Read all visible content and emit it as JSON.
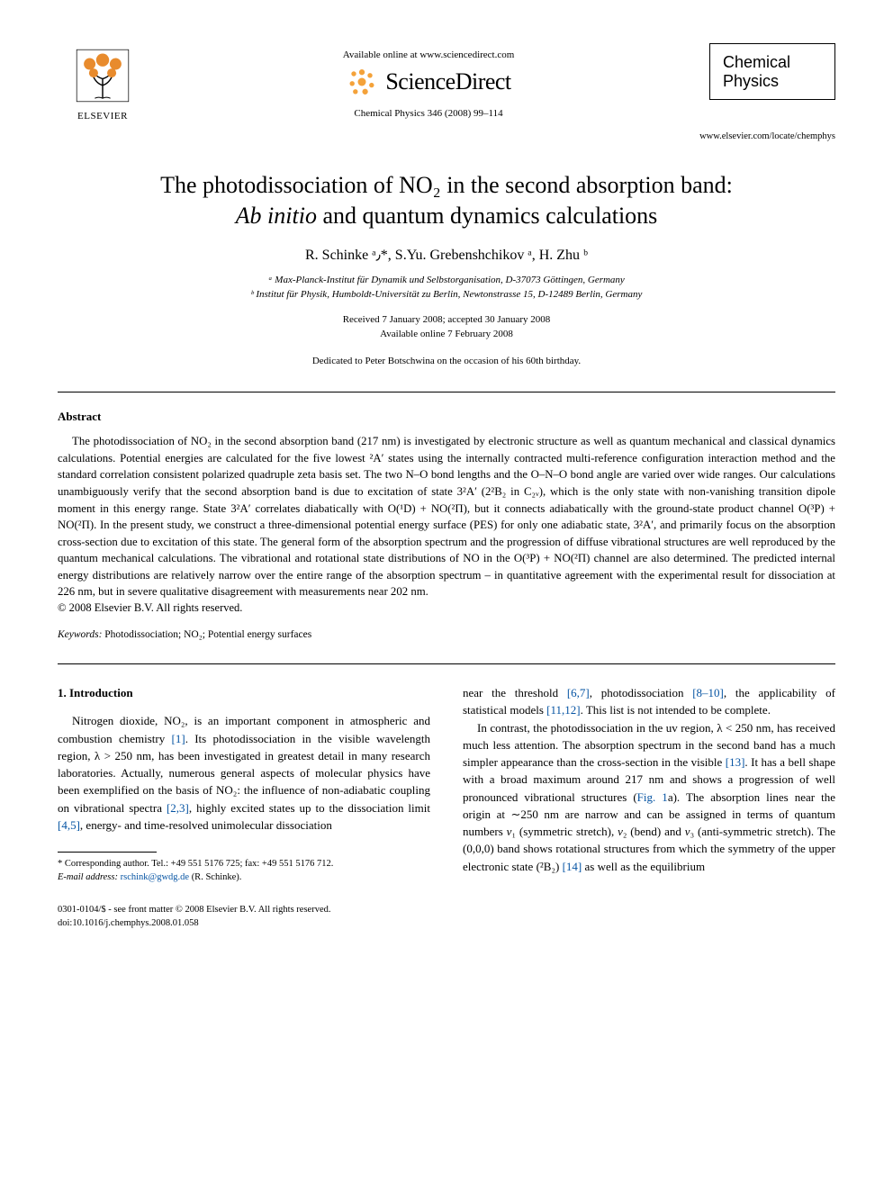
{
  "header": {
    "elsevier_label": "ELSEVIER",
    "available_online": "Available online at www.sciencedirect.com",
    "sciencedirect": "ScienceDirect",
    "journal_ref": "Chemical Physics 346 (2008) 99–114",
    "journal_box_line1": "Chemical",
    "journal_box_line2": "Physics",
    "journal_url": "www.elsevier.com/locate/chemphys",
    "elsevier_tree_color": "#e88b2d",
    "sd_dot_color": "#f4a23a"
  },
  "title": {
    "line1": "The photodissociation of NO₂ in the second absorption band:",
    "line2_html": "<i>Ab initio</i> and quantum dynamics calculations"
  },
  "authors": "R. Schinke ᵃ٫*, S.Yu. Grebenshchikov ᵃ, H. Zhu ᵇ",
  "affiliations": {
    "a": "ᵃ Max-Planck-Institut für Dynamik und Selbstorganisation, D-37073 Göttingen, Germany",
    "b": "ᵇ Institut für Physik, Humboldt-Universität zu Berlin, Newtonstrasse 15, D-12489 Berlin, Germany"
  },
  "dates": {
    "received": "Received 7 January 2008; accepted 30 January 2008",
    "online": "Available online 7 February 2008"
  },
  "dedication": "Dedicated to Peter Botschwina on the occasion of his 60th birthday.",
  "abstract": {
    "heading": "Abstract",
    "body": "The photodissociation of NO₂ in the second absorption band (217 nm) is investigated by electronic structure as well as quantum mechanical and classical dynamics calculations. Potential energies are calculated for the five lowest ²A′ states using the internally contracted multi-reference configuration interaction method and the standard correlation consistent polarized quadruple zeta basis set. The two N–O bond lengths and the O–N–O bond angle are varied over wide ranges. Our calculations unambiguously verify that the second absorption band is due to excitation of state 3²A′ (2²B₂ in C₂ᵥ), which is the only state with non-vanishing transition dipole moment in this energy range. State 3²A′ correlates diabatically with O(¹D) + NO(²Π), but it connects adiabatically with the ground-state product channel O(³P) + NO(²Π). In the present study, we construct a three-dimensional potential energy surface (PES) for only one adiabatic state, 3²A′, and primarily focus on the absorption cross-section due to excitation of this state. The general form of the absorption spectrum and the progression of diffuse vibrational structures are well reproduced by the quantum mechanical calculations. The vibrational and rotational state distributions of NO in the O(³P) + NO(²Π) channel are also determined. The predicted internal energy distributions are relatively narrow over the entire range of the absorption spectrum – in quantitative agreement with the experimental result for dissociation at 226 nm, but in severe qualitative disagreement with measurements near 202 nm.",
    "copyright": "© 2008 Elsevier B.V. All rights reserved."
  },
  "keywords": {
    "label": "Keywords:",
    "value": " Photodissociation; NO₂; Potential energy surfaces"
  },
  "introduction": {
    "heading": "1. Introduction",
    "col1_html": "Nitrogen dioxide, NO₂, is an important component in atmospheric and combustion chemistry <span class=\"ref-link\">[1]</span>. Its photodissociation in the visible wavelength region, λ > 250 nm, has been investigated in greatest detail in many research laboratories. Actually, numerous general aspects of molecular physics have been exemplified on the basis of NO₂: the influence of non-adiabatic coupling on vibrational spectra <span class=\"ref-link\">[2,3]</span>, highly excited states up to the dissociation limit <span class=\"ref-link\">[4,5]</span>, energy- and time-resolved unimolecular dissociation",
    "col2a_html": "near the threshold <span class=\"ref-link\">[6,7]</span>, photodissociation <span class=\"ref-link\">[8–10]</span>, the applicability of statistical models <span class=\"ref-link\">[11,12]</span>. This list is not intended to be complete.",
    "col2b_html": "In contrast, the photodissociation in the uv region, λ < 250 nm, has received much less attention. The absorption spectrum in the second band has a much simpler appearance than the cross-section in the visible <span class=\"ref-link\">[13]</span>. It has a bell shape with a broad maximum around 217 nm and shows a progression of well pronounced vibrational structures (<span class=\"ref-link\">Fig. 1</span>a). The absorption lines near the origin at ∼250 nm are narrow and can be assigned in terms of quantum numbers <i>v</i>₁ (symmetric stretch), <i>v</i>₂ (bend) and <i>v</i>₃ (anti-symmetric stretch). The (0,0,0) band shows rotational structures from which the symmetry of the upper electronic state (²B₂) <span class=\"ref-link\">[14]</span> as well as the equilibrium"
  },
  "footnote": {
    "corr": "* Corresponding author. Tel.: +49 551 5176 725; fax: +49 551 5176 712.",
    "email_label": "E-mail address:",
    "email": "rschink@gwdg.de",
    "email_paren": "(R. Schinke)."
  },
  "footer": {
    "left1": "0301-0104/$ - see front matter © 2008 Elsevier B.V. All rights reserved.",
    "doi": "doi:10.1016/j.chemphys.2008.01.058"
  },
  "colors": {
    "link": "#0654a3",
    "text": "#000000",
    "background": "#ffffff"
  }
}
